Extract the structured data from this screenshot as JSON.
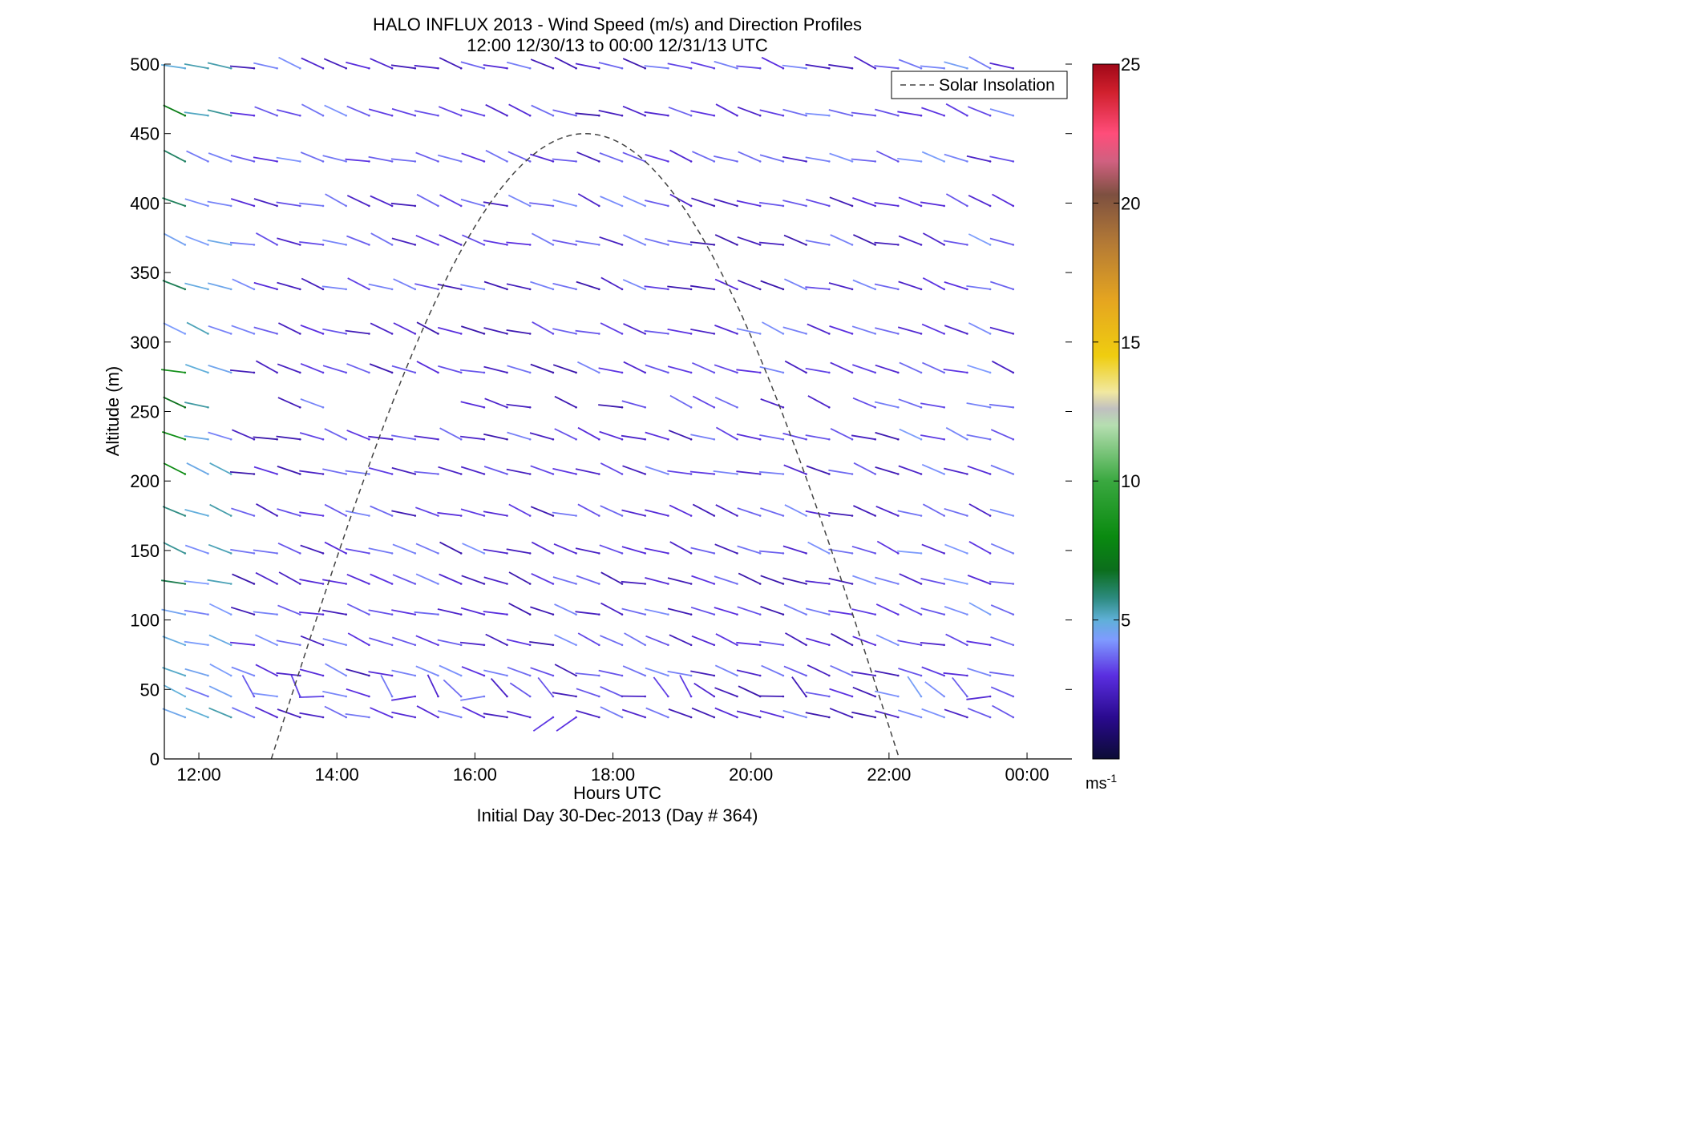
{
  "chart_data": {
    "type": "scatter",
    "title": "HALO INFLUX 2013 - Wind Speed (m/s) and Direction Profiles",
    "subtitle": "12:00 12/30/13 to 00:00 12/31/13  UTC",
    "xlabel": "Hours UTC",
    "xlabel2": "Initial Day 30-Dec-2013 (Day # 364)",
    "ylabel": "Altitude (m)",
    "xlim": [
      11.5,
      24.65
    ],
    "ylim": [
      0,
      500
    ],
    "xticks": [
      {
        "value": 12,
        "label": "12:00"
      },
      {
        "value": 14,
        "label": "14:00"
      },
      {
        "value": 16,
        "label": "16:00"
      },
      {
        "value": 18,
        "label": "18:00"
      },
      {
        "value": 20,
        "label": "20:00"
      },
      {
        "value": 22,
        "label": "22:00"
      },
      {
        "value": 24,
        "label": "00:00"
      }
    ],
    "yticks": [
      0,
      50,
      100,
      150,
      200,
      250,
      300,
      350,
      400,
      450,
      500
    ],
    "grid": false,
    "legend": {
      "position": "top-right",
      "entries": [
        {
          "name": "Solar Insolation",
          "style": "dashed",
          "color": "#444444"
        }
      ]
    },
    "colorbar": {
      "min": 0,
      "max": 25,
      "ticks": [
        "5",
        "10",
        "15",
        "20",
        "25"
      ],
      "unit_base": "ms",
      "unit_exp": "-1",
      "stops": [
        {
          "v": 0,
          "c": "#0b0b35"
        },
        {
          "v": 1.5,
          "c": "#2a0a8f"
        },
        {
          "v": 3,
          "c": "#5a2ee0"
        },
        {
          "v": 4.3,
          "c": "#7f9bff"
        },
        {
          "v": 5,
          "c": "#5fb0d8"
        },
        {
          "v": 5.8,
          "c": "#2c8a7e"
        },
        {
          "v": 6.8,
          "c": "#0b6e1c"
        },
        {
          "v": 8,
          "c": "#0a8a10"
        },
        {
          "v": 10,
          "c": "#3aa840"
        },
        {
          "v": 12,
          "c": "#b5deb0"
        },
        {
          "v": 12.6,
          "c": "#c0c0c0"
        },
        {
          "v": 13.2,
          "c": "#f1e8a0"
        },
        {
          "v": 14.5,
          "c": "#efcd10"
        },
        {
          "v": 16.5,
          "c": "#e5a520"
        },
        {
          "v": 18.5,
          "c": "#b57b35"
        },
        {
          "v": 20.3,
          "c": "#7d5040"
        },
        {
          "v": 21.5,
          "c": "#d06080"
        },
        {
          "v": 22.5,
          "c": "#ff4d7a"
        },
        {
          "v": 24,
          "c": "#d0202d"
        },
        {
          "v": 25,
          "c": "#a00818"
        }
      ]
    },
    "solar_insolation_curve": {
      "start_hour": 13.05,
      "end_hour": 22.15,
      "peak_hour": 17.6,
      "peak_altitude": 450
    },
    "wind_barbs": {
      "altitudes": [
        30,
        45,
        60,
        82,
        104,
        126,
        148,
        175,
        205,
        230,
        253,
        278,
        306,
        338,
        370,
        398,
        430,
        463,
        497
      ],
      "start_hour": 11.8,
      "end_hour": 23.8,
      "step_hours": 0.33333,
      "typical_speed_ms": 3,
      "notes": "Most barbs are 2-4 m/s; lowest-level barbs near 50 m vary strongly in direction; at 12:00-12:30 upper levels reach 5-9 m/s."
    }
  }
}
